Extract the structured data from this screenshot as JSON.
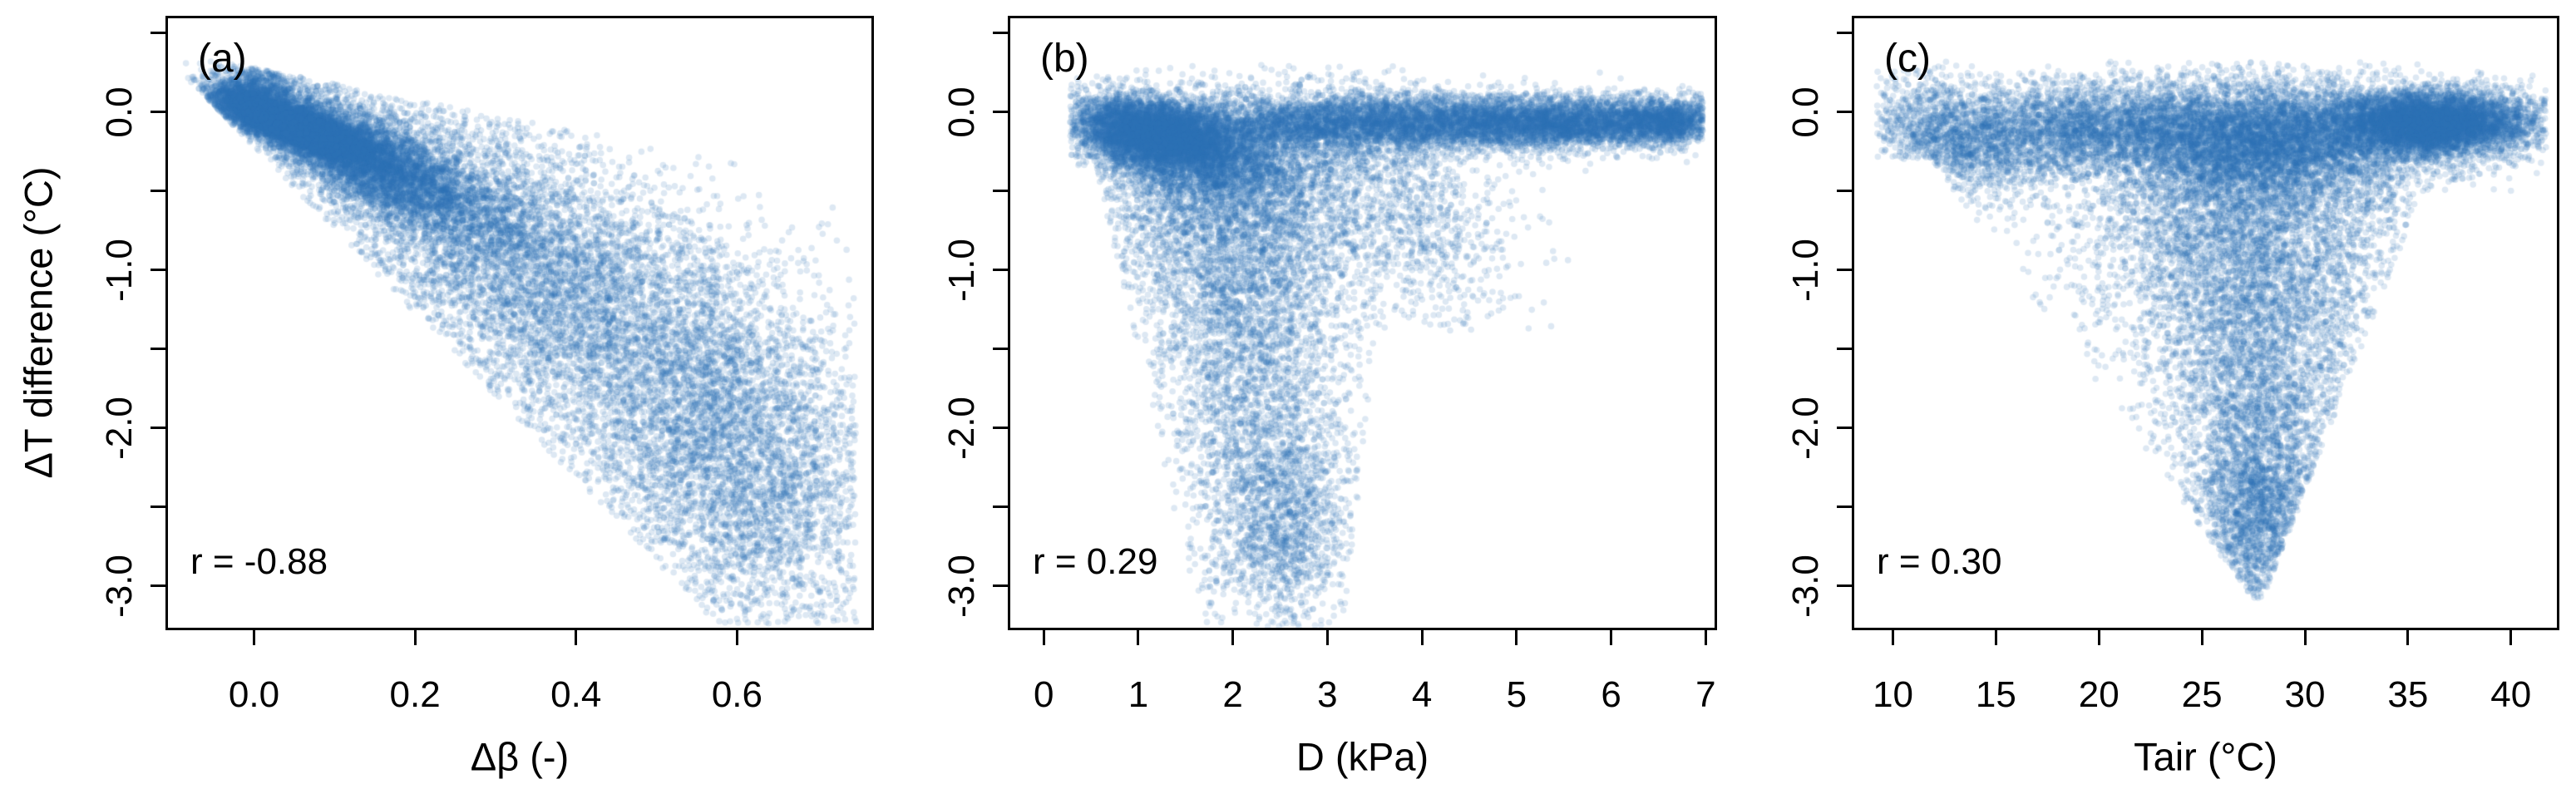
{
  "chart_data": {
    "type": "scatter",
    "variant": "density_scatter",
    "description": "Three-panel R-style density scatter plot. Each panel plots ΔT difference (°C) against a driver variable; point colour encodes local point density (Blues colour ramp, light = sparse, dark = dense). Pearson correlation annotated in each panel.",
    "title": "",
    "ylabel": "ΔT difference (°C)",
    "ylim": [
      -3.28,
      0.61
    ],
    "yticks": [
      {
        "value": 0.5,
        "label": ""
      },
      {
        "value": 0.0,
        "label": "0.0"
      },
      {
        "value": -0.5,
        "label": ""
      },
      {
        "value": -1.0,
        "label": "-1.0"
      },
      {
        "value": -1.5,
        "label": ""
      },
      {
        "value": -2.0,
        "label": "-2.0"
      },
      {
        "value": -2.5,
        "label": ""
      },
      {
        "value": -3.0,
        "label": "-3.0"
      }
    ],
    "grid": false,
    "legend": false,
    "point_color_scale": {
      "low": "#dde9f3",
      "high": "#2e73b2",
      "meaning": "point density"
    },
    "style": {
      "point_color": "#2e73b2",
      "point_alpha": 0.16,
      "point_radius": 3.8,
      "axis_color": "#000000",
      "background": "#ffffff"
    },
    "panels": [
      {
        "letter": "(a)",
        "xlabel": "Δβ (-)",
        "correlation": -0.88,
        "correlation_label": "r = -0.88",
        "xlim": [
          -0.11,
          0.77
        ],
        "xticks": [
          {
            "value": 0.0,
            "label": "0.0"
          },
          {
            "value": 0.2,
            "label": "0.2"
          },
          {
            "value": 0.4,
            "label": "0.4"
          },
          {
            "value": 0.6,
            "label": "0.6"
          }
        ],
        "x_data_range": [
          -0.08,
          0.75
        ],
        "y_data_range": [
          -3.2,
          0.35
        ],
        "shape": "negative wedge: dark dense core near (0.05, -0.1) elongated toward (0.3, -0.6); cloud fans down-right to about (0.63, -3.2)",
        "n_points": 26000,
        "seed": 101,
        "density_clusters": [
          {
            "w": 0.3,
            "mx": 0.055,
            "sx": 0.042,
            "my": -0.1,
            "sy": 0.065,
            "slope": -1.8
          },
          {
            "w": 0.2,
            "mx": 0.14,
            "sx": 0.075,
            "my": -0.3,
            "sy": 0.15,
            "slope": -2.2
          },
          {
            "w": 0.17,
            "mx": 0.28,
            "sx": 0.13,
            "my": -0.75,
            "sy": 0.38,
            "slope": -2.6
          },
          {
            "w": 0.15,
            "mx": 0.46,
            "sx": 0.15,
            "my": -1.5,
            "sy": 0.62,
            "slope": -2.4
          },
          {
            "w": 0.13,
            "mx": 0.6,
            "sx": 0.1,
            "my": -2.2,
            "sy": 0.55,
            "slope": -2.2
          },
          {
            "w": 0.05,
            "mx": -0.01,
            "sx": 0.032,
            "my": 0.1,
            "sy": 0.1,
            "slope": 0.8
          }
        ],
        "clip": {
          "x": [
            -0.085,
            0.748
          ],
          "y": [
            -3.24,
            0.34
          ],
          "top": [
            0.28,
            -1.0
          ],
          "bottom": [
            -0.22,
            -5.25
          ]
        }
      },
      {
        "letter": "(b)",
        "xlabel": "D (kPa)",
        "correlation": 0.29,
        "correlation_label": "r = 0.29",
        "xlim": [
          -0.38,
          7.12
        ],
        "xticks": [
          {
            "value": 0,
            "label": "0"
          },
          {
            "value": 1,
            "label": "1"
          },
          {
            "value": 2,
            "label": "2"
          },
          {
            "value": 3,
            "label": "3"
          },
          {
            "value": 4,
            "label": "4"
          },
          {
            "value": 5,
            "label": "5"
          },
          {
            "value": 6,
            "label": "6"
          },
          {
            "value": 7,
            "label": "7"
          }
        ],
        "x_data_range": [
          0.3,
          6.95
        ],
        "y_data_range": [
          -3.25,
          0.3
        ],
        "shape": "dark horizontal band at ΔT ≈ -0.05 from D ≈ 0.5 to 7 (darkest 0.7–2); wide light plume descending to -3.2 between D ≈ 1 and 3.5",
        "n_points": 26000,
        "seed": 202,
        "density_clusters": [
          {
            "w": 0.22,
            "mx": 1.15,
            "sx": 0.42,
            "my": -0.14,
            "sy": 0.11,
            "slope": -0.1
          },
          {
            "w": 0.08,
            "mx": 1.8,
            "sx": 0.6,
            "my": -0.3,
            "sy": 0.16,
            "slope": -0.05
          },
          {
            "w": 0.18,
            "mx": 3.4,
            "sx": 1.1,
            "my": -0.07,
            "sy": 0.09,
            "slope": 0
          },
          {
            "w": 0.15,
            "mx": 5.5,
            "sx": 0.85,
            "my": -0.06,
            "sy": 0.08,
            "slope": 0
          },
          {
            "w": 0.04,
            "mx": 6.6,
            "sx": 0.3,
            "my": -0.06,
            "sy": 0.07,
            "slope": 0
          },
          {
            "w": 0.12,
            "mx": 1.9,
            "sx": 0.7,
            "my": -0.6,
            "sy": 0.38,
            "slope": 0
          },
          {
            "w": 0.1,
            "mx": 2.2,
            "sx": 0.55,
            "my": -1.5,
            "sy": 0.55,
            "slope": 0
          },
          {
            "w": 0.06,
            "mx": 2.5,
            "sx": 0.4,
            "my": -2.6,
            "sy": 0.35,
            "slope": 0
          },
          {
            "w": 0.05,
            "mx": 3.7,
            "sx": 0.6,
            "my": -0.55,
            "sy": 0.35,
            "slope": -0.3
          }
        ],
        "clip": {
          "x": [
            0.28,
            6.97
          ],
          "y": [
            -3.26,
            0.32
          ],
          "top": [
            0.3,
            0
          ],
          "left_bound": {
            "below": -0.35,
            "line": [
              0.42,
              -0.38
            ]
          },
          "right_bound": {
            "below": -1.4,
            "line": [
              3.76,
              0.18
            ]
          }
        }
      },
      {
        "letter": "(c)",
        "xlabel": "Tair (°C)",
        "correlation": 0.3,
        "correlation_label": "r = 0.30",
        "xlim": [
          8.0,
          42.35
        ],
        "xticks": [
          {
            "value": 10,
            "label": "10"
          },
          {
            "value": 15,
            "label": "15"
          },
          {
            "value": 20,
            "label": "20"
          },
          {
            "value": 25,
            "label": "25"
          },
          {
            "value": 30,
            "label": "30"
          },
          {
            "value": 35,
            "label": "35"
          },
          {
            "value": 40,
            "label": "40"
          }
        ],
        "x_data_range": [
          9.2,
          41.6
        ],
        "y_data_range": [
          -3.25,
          0.3
        ],
        "shape": "dark band at ΔT ≈ -0.05, darkest at Tair 33–40 with a mid-band sag near (25, -0.2); triangular plume descending to (27.5, -3.2) with diagonal left edge from (11, -0.2)",
        "n_points": 26000,
        "seed": 303,
        "density_clusters": [
          {
            "w": 0.26,
            "mx": 36.2,
            "sx": 2.5,
            "my": -0.07,
            "sy": 0.1,
            "slope": 0
          },
          {
            "w": 0.2,
            "mx": 28.5,
            "sx": 3.6,
            "my": -0.18,
            "sy": 0.18,
            "slope": 0
          },
          {
            "w": 0.13,
            "mx": 20.0,
            "sx": 4.0,
            "my": -0.1,
            "sy": 0.15,
            "slope": 0
          },
          {
            "w": 0.06,
            "mx": 13.0,
            "sx": 2.2,
            "my": -0.15,
            "sy": 0.18,
            "slope": -0.03
          },
          {
            "w": 0.16,
            "mx": 27.0,
            "sx": 4.4,
            "my": -0.65,
            "sy": 0.42,
            "slope": 0
          },
          {
            "w": 0.12,
            "mx": 27.8,
            "sx": 2.7,
            "my": -1.55,
            "sy": 0.55,
            "slope": 0
          },
          {
            "w": 0.07,
            "mx": 27.8,
            "sx": 1.6,
            "my": -2.55,
            "sy": 0.38,
            "slope": 0
          }
        ],
        "clip": {
          "x": [
            9.2,
            41.7
          ],
          "y": [
            -3.26,
            0.34
          ],
          "top": [
            0.32,
            0
          ],
          "left_bound": {
            "below": -0.3,
            "line": [
              10.2,
              -5.6
            ]
          },
          "right_bound": {
            "below": -0.5,
            "line": [
              37.2,
              3.0
            ]
          }
        }
      }
    ]
  }
}
